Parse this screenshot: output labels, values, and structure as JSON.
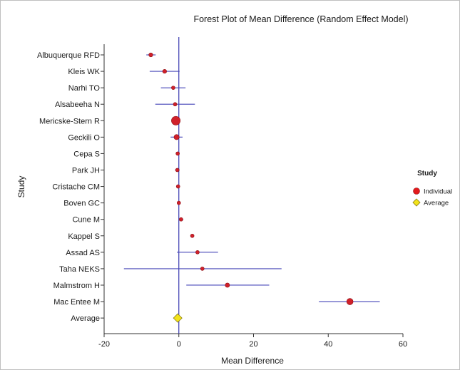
{
  "chart_data": {
    "type": "scatter",
    "title": "Forest Plot of Mean Difference  (Random Effect Model)",
    "xlabel": "Mean Difference",
    "ylabel": "Study",
    "xlim": [
      -20,
      60
    ],
    "xticks": [
      -20,
      0,
      20,
      40,
      60
    ],
    "reference_line": 0,
    "grid": false,
    "legend_position": "right",
    "legend": {
      "title": "Study",
      "entries": [
        {
          "label": "Individual",
          "marker": "circle",
          "color": "#e31a1c"
        },
        {
          "label": "Average",
          "marker": "diamond",
          "color": "#f2e31a"
        }
      ]
    },
    "series": [
      {
        "name": "Individual",
        "color": "#d0202a",
        "points": [
          {
            "study": "Albuquerque RFD",
            "mean": -7.5,
            "lower": -8.7,
            "upper": -6.2,
            "weight": 1.0
          },
          {
            "study": "Kleis WK",
            "mean": -3.8,
            "lower": -7.8,
            "upper": 0.2,
            "weight": 1.0
          },
          {
            "study": "Narhi TO",
            "mean": -1.5,
            "lower": -4.8,
            "upper": 1.8,
            "weight": 0.9
          },
          {
            "study": "Alsabeeha N",
            "mean": -1.0,
            "lower": -6.3,
            "upper": 4.3,
            "weight": 0.9
          },
          {
            "study": "Mericske-Stern R",
            "mean": -0.8,
            "lower": -1.5,
            "upper": -0.1,
            "weight": 2.2
          },
          {
            "study": "Geckili O",
            "mean": -0.6,
            "lower": -2.2,
            "upper": 1.0,
            "weight": 1.3
          },
          {
            "study": "Cepa S",
            "mean": -0.3,
            "lower": -0.7,
            "upper": 0.1,
            "weight": 0.9
          },
          {
            "study": "Park JH",
            "mean": -0.4,
            "lower": -1.0,
            "upper": 0.2,
            "weight": 0.9
          },
          {
            "study": "Cristache CM",
            "mean": -0.2,
            "lower": -0.5,
            "upper": 0.1,
            "weight": 0.9
          },
          {
            "study": "Boven GC",
            "mean": 0.0,
            "lower": -0.3,
            "upper": 0.3,
            "weight": 0.9
          },
          {
            "study": "Cune M",
            "mean": 0.6,
            "lower": 0.0,
            "upper": 1.2,
            "weight": 0.9
          },
          {
            "study": "Kappel S",
            "mean": 3.6,
            "lower": 3.3,
            "upper": 3.9,
            "weight": 0.9
          },
          {
            "study": "Assad AS",
            "mean": 5.0,
            "lower": -0.5,
            "upper": 10.5,
            "weight": 0.9
          },
          {
            "study": "Taha NEKS",
            "mean": 6.3,
            "lower": -14.7,
            "upper": 27.5,
            "weight": 0.9
          },
          {
            "study": "Malmstrom H",
            "mean": 13.0,
            "lower": 2.0,
            "upper": 24.2,
            "weight": 1.1
          },
          {
            "study": "Mac Entee M",
            "mean": 45.8,
            "lower": 37.5,
            "upper": 53.8,
            "weight": 1.6
          }
        ]
      },
      {
        "name": "Average",
        "color": "#f2e31a",
        "points": [
          {
            "study": "Average",
            "mean": -0.3,
            "lower": -1.2,
            "upper": 0.6
          }
        ]
      }
    ]
  }
}
